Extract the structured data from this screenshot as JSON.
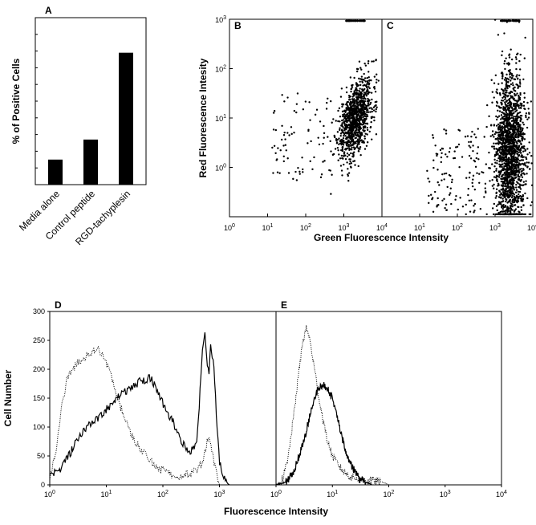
{
  "chart_data": [
    {
      "panel": "A",
      "type": "bar",
      "ylabel": "% of Positive Cells",
      "categories": [
        "Media alone",
        "Control peptide",
        "RGD-tachyplesin"
      ],
      "values": [
        15,
        27,
        79
      ],
      "ylim": [
        0,
        100
      ],
      "grid": false,
      "legend": "none"
    },
    {
      "panel": "B",
      "type": "scatter",
      "xscale": "log",
      "yscale": "log",
      "xlim": [
        1,
        10000
      ],
      "ylim": [
        0.1,
        1000
      ],
      "x_ticks": [
        "10^0",
        "10^1",
        "10^2",
        "10^3",
        "10^4"
      ],
      "y_ticks": [
        "10^0",
        "10^1",
        "10^2",
        "10^3"
      ],
      "ylabel": "Red Fluorescence Intesity",
      "xlabel": "Green Fluorescence Intensity",
      "population": {
        "center_x": 2000,
        "center_y": 10,
        "spread_log_x": 0.22,
        "spread_log_y": 0.35,
        "correlated": true
      }
    },
    {
      "panel": "C",
      "type": "scatter",
      "xscale": "log",
      "yscale": "log",
      "xlim": [
        1,
        10000
      ],
      "ylim": [
        0.1,
        1000
      ],
      "x_ticks": [
        "10^1",
        "10^2",
        "10^3",
        "10^4"
      ],
      "xlabel": "Green Fluorescence Intensity",
      "population": {
        "center_x": 2500,
        "center_y": 2,
        "spread_log_x": 0.2,
        "spread_log_y": 0.8,
        "correlated": false
      }
    },
    {
      "panel": "D",
      "type": "line",
      "xscale": "log",
      "xlim": [
        1,
        10000
      ],
      "ylim": [
        0,
        300
      ],
      "x_ticks": [
        "10^0",
        "10^1",
        "10^2",
        "10^3"
      ],
      "y_ticks": [
        "0",
        "50",
        "100",
        "150",
        "200",
        "250",
        "300"
      ],
      "ylabel": "Cell Number",
      "xlabel": "Fluorescence Intensity",
      "series": [
        {
          "style": "solid",
          "x": [
            1,
            1.5,
            2,
            3,
            4,
            6,
            10,
            15,
            25,
            40,
            60,
            80,
            100,
            150,
            200,
            300,
            400,
            500,
            550,
            600,
            650,
            700,
            800,
            900,
            1000,
            1200,
            1500
          ],
          "y": [
            15,
            25,
            45,
            75,
            95,
            110,
            130,
            150,
            165,
            180,
            185,
            165,
            140,
            110,
            80,
            55,
            75,
            230,
            270,
            215,
            190,
            240,
            200,
            110,
            40,
            10,
            0
          ]
        },
        {
          "style": "dotted",
          "x": [
            1,
            1.3,
            1.6,
            2,
            3,
            5,
            7,
            9,
            12,
            15,
            20,
            30,
            50,
            80,
            120,
            200,
            300,
            400,
            500,
            600,
            650,
            700,
            800,
            900,
            1000
          ],
          "y": [
            10,
            60,
            130,
            180,
            210,
            225,
            240,
            220,
            190,
            160,
            120,
            80,
            50,
            30,
            20,
            15,
            20,
            25,
            40,
            75,
            80,
            70,
            40,
            15,
            0
          ]
        }
      ]
    },
    {
      "panel": "E",
      "type": "line",
      "xscale": "log",
      "xlim": [
        1,
        10000
      ],
      "ylim": [
        0,
        300
      ],
      "x_ticks": [
        "10^0",
        "10^1",
        "10^2",
        "10^3",
        "10^4"
      ],
      "xlabel": "Fluorescence Intensity",
      "series": [
        {
          "style": "solid",
          "x": [
            1,
            1.5,
            2,
            3,
            4,
            5,
            6,
            7,
            8,
            10,
            12,
            15,
            20,
            30,
            50
          ],
          "y": [
            0,
            5,
            20,
            70,
            120,
            155,
            170,
            172,
            168,
            150,
            120,
            80,
            40,
            10,
            0
          ]
        },
        {
          "style": "dotted",
          "x": [
            1,
            1.3,
            1.6,
            2,
            2.5,
            3,
            3.5,
            4,
            5,
            6,
            8,
            10,
            15,
            20,
            30,
            50,
            80,
            100
          ],
          "y": [
            0,
            10,
            40,
            110,
            190,
            250,
            272,
            250,
            190,
            140,
            80,
            50,
            25,
            15,
            10,
            8,
            4,
            0
          ]
        }
      ]
    }
  ]
}
